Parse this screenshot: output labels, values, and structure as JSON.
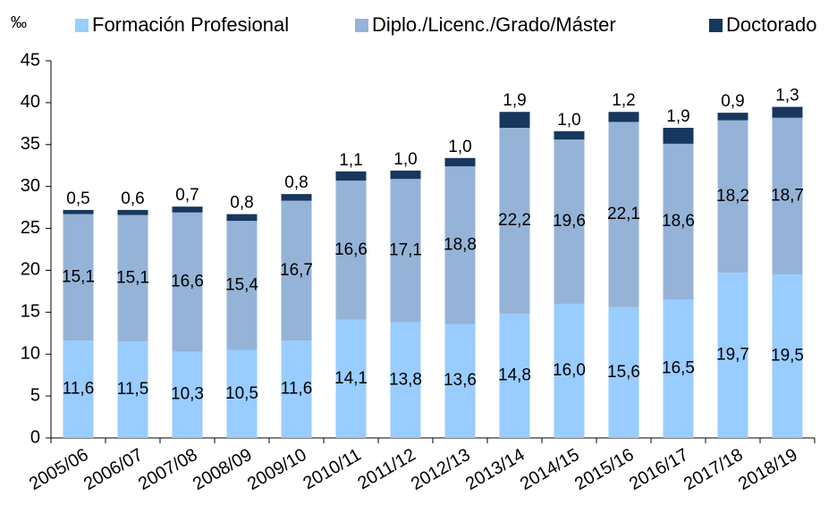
{
  "chart_data": {
    "type": "bar",
    "stacked": true,
    "y_label": "‰",
    "categories": [
      "2005/06",
      "2006/07",
      "2007/08",
      "2008/09",
      "2009/10",
      "2010/11",
      "2011/12",
      "2012/13",
      "2013/14",
      "2014/15",
      "2015/16",
      "2016/17",
      "2017/18",
      "2018/19"
    ],
    "series": [
      {
        "name": "Formación Profesional",
        "color": "#99ccff",
        "values": [
          11.6,
          11.5,
          10.3,
          10.5,
          11.6,
          14.1,
          13.8,
          13.6,
          14.8,
          16.0,
          15.6,
          16.5,
          19.7,
          19.5
        ],
        "value_labels": [
          "11,6",
          "11,5",
          "10,3",
          "10,5",
          "11,6",
          "14,1",
          "13,8",
          "13,6",
          "14,8",
          "16,0",
          "15,6",
          "16,5",
          "19,7",
          "19,5"
        ]
      },
      {
        "name": "Diplo./Licenc./Grado/Máster",
        "color": "#95b3d7",
        "values": [
          15.1,
          15.1,
          16.6,
          15.4,
          16.7,
          16.6,
          17.1,
          18.8,
          22.2,
          19.6,
          22.1,
          18.6,
          18.2,
          18.7
        ],
        "value_labels": [
          "15,1",
          "15,1",
          "16,6",
          "15,4",
          "16,7",
          "16,6",
          "17,1",
          "18,8",
          "22,2",
          "19,6",
          "22,1",
          "18,6",
          "18,2",
          "18,7"
        ]
      },
      {
        "name": "Doctorado",
        "color": "#17375e",
        "values": [
          0.5,
          0.6,
          0.7,
          0.8,
          0.8,
          1.1,
          1.0,
          1.0,
          1.9,
          1.0,
          1.2,
          1.9,
          0.9,
          1.3
        ],
        "value_labels": [
          "0,5",
          "0,6",
          "0,7",
          "0,8",
          "0,8",
          "1,1",
          "1,0",
          "1,0",
          "1,9",
          "1,0",
          "1,2",
          "1,9",
          "0,9",
          "1,3"
        ]
      }
    ],
    "ylim": [
      0,
      45
    ],
    "yticks": [
      0,
      5,
      10,
      15,
      20,
      25,
      30,
      35,
      40,
      45
    ],
    "legend": "top"
  }
}
